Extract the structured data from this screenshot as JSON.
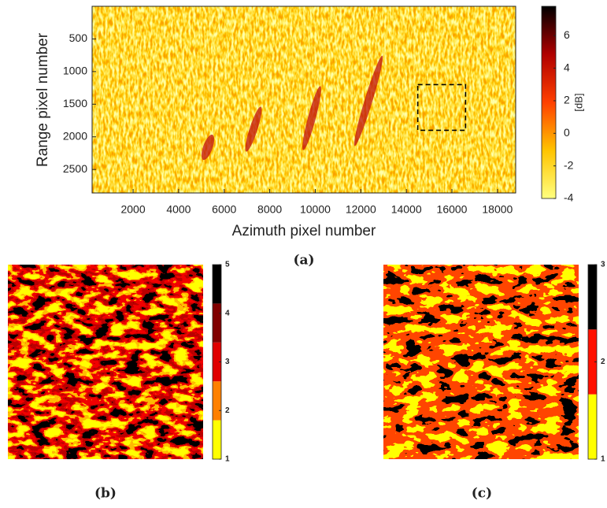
{
  "chart_data": [
    {
      "type": "heatmap",
      "caption": "(a)",
      "xlabel": "Azimuth pixel number",
      "ylabel": "Range pixel number",
      "xlim": [
        200,
        18800
      ],
      "xticks": [
        2000,
        4000,
        6000,
        8000,
        10000,
        12000,
        14000,
        16000,
        18000
      ],
      "ylim": [
        0,
        2860
      ],
      "yticks": [
        500,
        1000,
        1500,
        2000,
        2500
      ],
      "box": {
        "x": [
          14500,
          16600
        ],
        "y": [
          1200,
          1900
        ]
      },
      "colorbar": {
        "label": "[dB]",
        "lim": [
          -4,
          7.8
        ],
        "ticks": [
          -4,
          -2,
          0,
          2,
          4,
          6
        ],
        "colors": [
          "#ffff80",
          "#ffc400",
          "#ff4000",
          "#b00000",
          "#000000"
        ]
      }
    },
    {
      "type": "heatmap",
      "caption": "(b)",
      "colorbar": {
        "lim": [
          1,
          5
        ],
        "ticks": [
          1,
          2,
          3,
          4,
          5
        ],
        "colors": [
          "#ffff00",
          "#ff8000",
          "#e00000",
          "#800000",
          "#000000"
        ]
      }
    },
    {
      "type": "heatmap",
      "caption": "(c)",
      "colorbar": {
        "lim": [
          1,
          3
        ],
        "ticks": [
          1,
          2,
          3
        ],
        "colors": [
          "#ffff00",
          "#ff1000",
          "#000000"
        ]
      }
    }
  ]
}
